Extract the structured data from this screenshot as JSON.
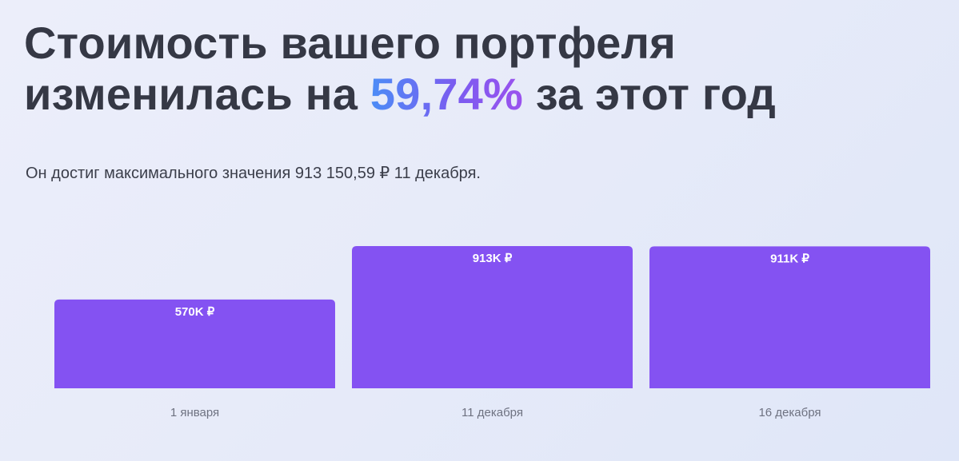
{
  "headline": {
    "line1": "Стоимость вашего портфеля",
    "line2_prefix": "изменилась на ",
    "line2_value": "59,74%",
    "line2_suffix": " за этот год"
  },
  "subtitle": "Он достиг максимального значения 913 150,59 ₽ 11 декабря.",
  "colors": {
    "bar": "#8452f2",
    "bar_label": "#ffffff",
    "axis_label": "#6e7281"
  },
  "chart_data": {
    "type": "bar",
    "categories": [
      "1 января",
      "11 декабря",
      "16 декабря"
    ],
    "values": [
      570,
      913,
      911
    ],
    "value_labels": [
      "570K ₽",
      "913K ₽",
      "911K ₽"
    ],
    "title": "",
    "xlabel": "",
    "ylabel": "",
    "ylim": [
      0,
      913
    ],
    "grid": false,
    "legend": "none"
  }
}
